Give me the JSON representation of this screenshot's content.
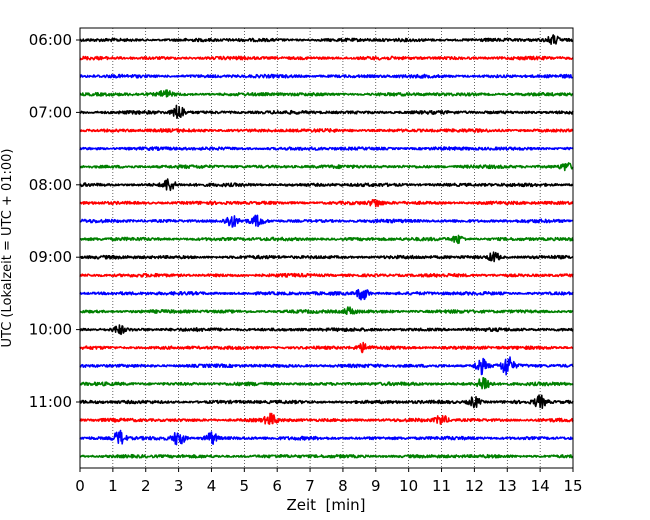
{
  "chart_data": {
    "type": "line",
    "title": "",
    "xlabel": "Zeit  [min]",
    "ylabel": "UTC (Lokalzeit = UTC + 01:00)",
    "xlim": [
      0,
      15
    ],
    "x_ticks": [
      "0",
      "1",
      "2",
      "3",
      "4",
      "5",
      "6",
      "7",
      "8",
      "9",
      "10",
      "11",
      "12",
      "13",
      "14",
      "15"
    ],
    "y_ticks": [
      "06:00",
      "07:00",
      "08:00",
      "09:00",
      "10:00",
      "11:00"
    ],
    "grid": "vertical dotted",
    "trace_interval_minutes": 15,
    "colors": [
      "#000000",
      "#ff0000",
      "#0000ff",
      "#008000"
    ],
    "traces": [
      {
        "start": "06:00",
        "color": "#000000",
        "bursts": [
          {
            "t": 14.4,
            "amp": 1.3
          }
        ]
      },
      {
        "start": "06:15",
        "color": "#ff0000",
        "bursts": []
      },
      {
        "start": "06:30",
        "color": "#0000ff",
        "bursts": []
      },
      {
        "start": "06:45",
        "color": "#008000",
        "bursts": [
          {
            "t": 2.6,
            "amp": 1.2
          }
        ]
      },
      {
        "start": "07:00",
        "color": "#000000",
        "bursts": [
          {
            "t": 3.0,
            "amp": 2.6
          }
        ]
      },
      {
        "start": "07:15",
        "color": "#ff0000",
        "bursts": []
      },
      {
        "start": "07:30",
        "color": "#0000ff",
        "bursts": []
      },
      {
        "start": "07:45",
        "color": "#008000",
        "bursts": [
          {
            "t": 14.8,
            "amp": 1.2
          }
        ]
      },
      {
        "start": "08:00",
        "color": "#000000",
        "bursts": [
          {
            "t": 2.7,
            "amp": 2.0
          }
        ]
      },
      {
        "start": "08:15",
        "color": "#ff0000",
        "bursts": [
          {
            "t": 9.0,
            "amp": 1.2
          }
        ]
      },
      {
        "start": "08:30",
        "color": "#0000ff",
        "bursts": [
          {
            "t": 4.6,
            "amp": 1.9
          },
          {
            "t": 5.4,
            "amp": 1.6
          }
        ]
      },
      {
        "start": "08:45",
        "color": "#008000",
        "bursts": [
          {
            "t": 11.5,
            "amp": 1.3
          }
        ]
      },
      {
        "start": "09:00",
        "color": "#000000",
        "bursts": [
          {
            "t": 12.6,
            "amp": 1.6
          }
        ]
      },
      {
        "start": "09:15",
        "color": "#ff0000",
        "bursts": []
      },
      {
        "start": "09:30",
        "color": "#0000ff",
        "bursts": [
          {
            "t": 8.6,
            "amp": 2.2
          }
        ]
      },
      {
        "start": "09:45",
        "color": "#008000",
        "bursts": [
          {
            "t": 8.2,
            "amp": 1.2
          }
        ]
      },
      {
        "start": "10:00",
        "color": "#000000",
        "bursts": [
          {
            "t": 1.2,
            "amp": 1.4
          }
        ]
      },
      {
        "start": "10:15",
        "color": "#ff0000",
        "bursts": [
          {
            "t": 8.6,
            "amp": 1.3
          }
        ]
      },
      {
        "start": "10:30",
        "color": "#0000ff",
        "bursts": [
          {
            "t": 12.2,
            "amp": 2.6
          },
          {
            "t": 13.0,
            "amp": 3.2
          }
        ]
      },
      {
        "start": "10:45",
        "color": "#008000",
        "bursts": [
          {
            "t": 12.3,
            "amp": 2.6
          }
        ]
      },
      {
        "start": "11:00",
        "color": "#000000",
        "bursts": [
          {
            "t": 12.0,
            "amp": 1.8
          },
          {
            "t": 14.0,
            "amp": 2.0
          }
        ]
      },
      {
        "start": "11:15",
        "color": "#ff0000",
        "bursts": [
          {
            "t": 5.8,
            "amp": 1.8
          },
          {
            "t": 11.0,
            "amp": 1.6
          }
        ]
      },
      {
        "start": "11:30",
        "color": "#0000ff",
        "bursts": [
          {
            "t": 1.2,
            "amp": 2.4
          },
          {
            "t": 3.0,
            "amp": 2.4
          },
          {
            "t": 4.0,
            "amp": 2.0
          }
        ]
      },
      {
        "start": "11:45",
        "color": "#008000",
        "bursts": []
      }
    ]
  }
}
